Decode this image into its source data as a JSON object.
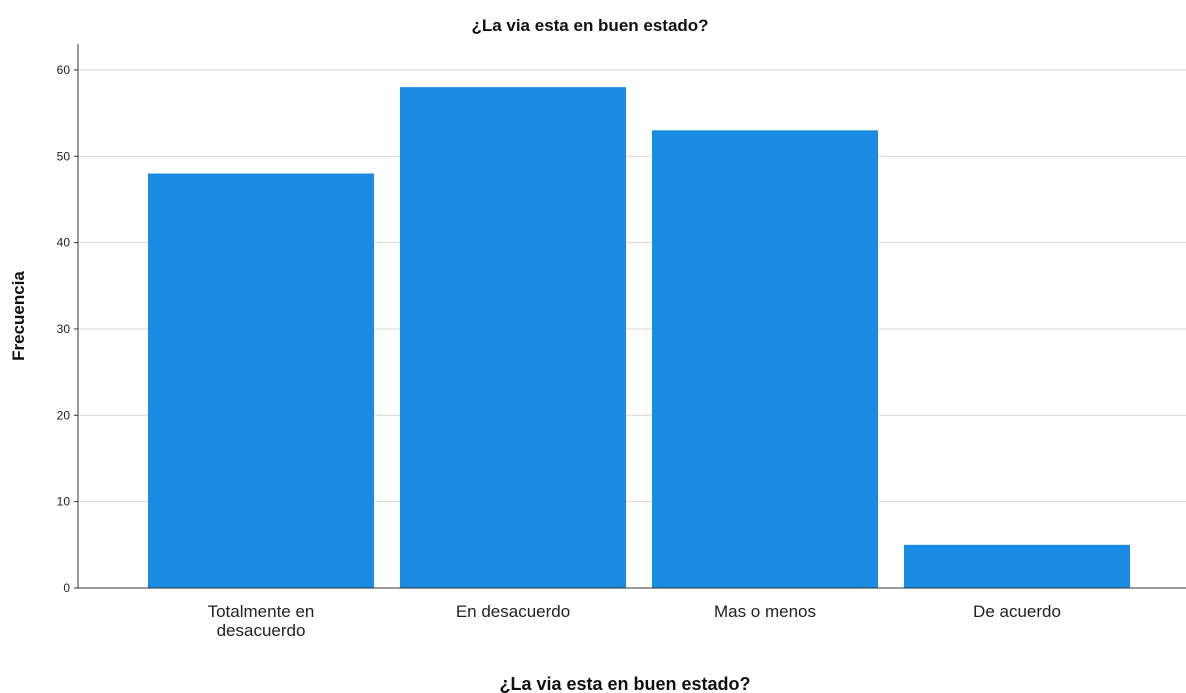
{
  "chart_data": {
    "type": "bar",
    "title": "¿La via esta en buen estado?",
    "xlabel": "¿La via esta en buen estado?",
    "ylabel": "Frecuencia",
    "categories": [
      [
        "Totalmente en",
        "desacuerdo"
      ],
      [
        "En desacuerdo"
      ],
      [
        "Mas o menos"
      ],
      [
        "De acuerdo"
      ]
    ],
    "values": [
      48,
      58,
      53,
      5
    ],
    "ylim": [
      0,
      63
    ],
    "yticks": [
      0,
      10,
      20,
      30,
      40,
      50,
      60
    ],
    "grid": true,
    "bar_color": "#1a8be3"
  }
}
